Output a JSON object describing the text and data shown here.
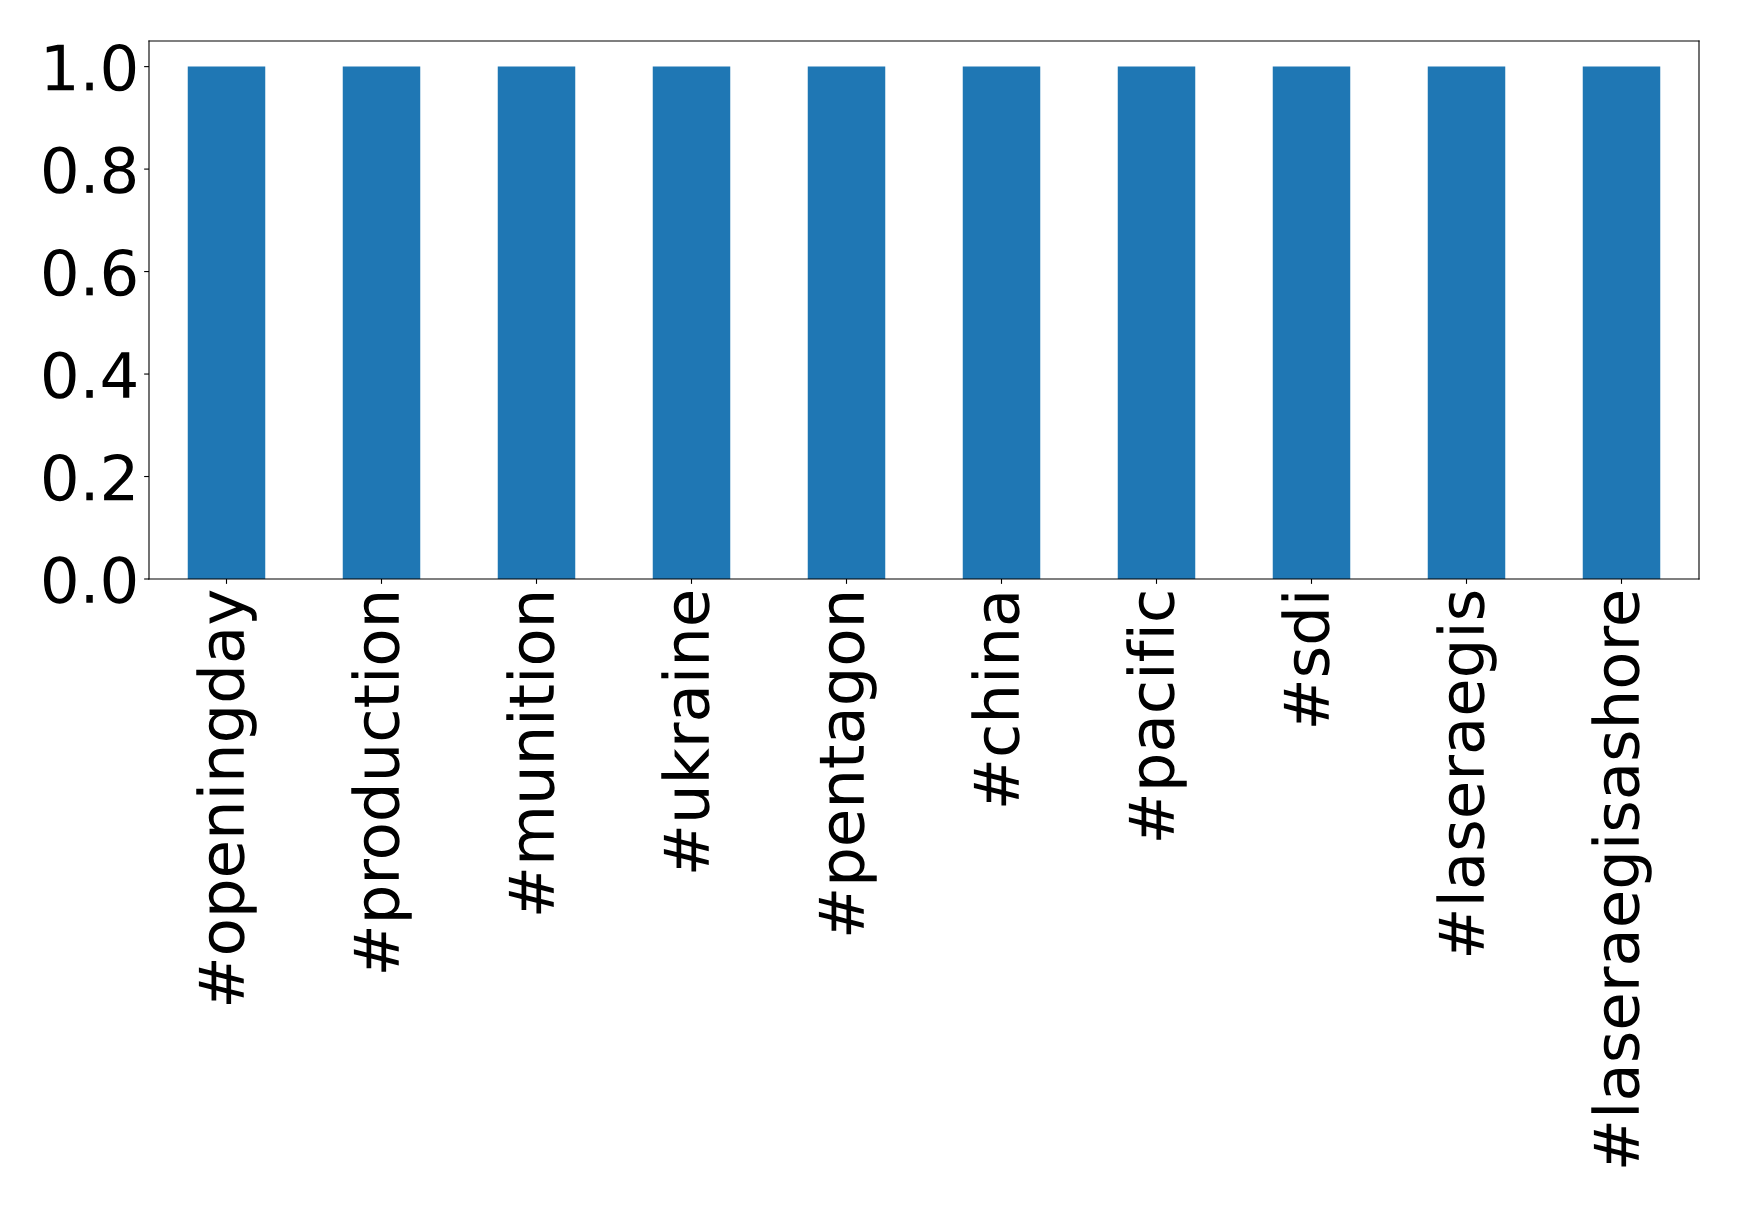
{
  "chart_data": {
    "type": "bar",
    "categories": [
      "#openingday",
      "#production",
      "#munition",
      "#ukraine",
      "#pentagon",
      "#china",
      "#pacific",
      "#sdi",
      "#laseraegis",
      "#laseraegisashore"
    ],
    "values": [
      1,
      1,
      1,
      1,
      1,
      1,
      1,
      1,
      1,
      1
    ],
    "color": "#1f77b4",
    "ylim": [
      0,
      1.05
    ],
    "yticks": [
      {
        "value": 0,
        "label": "0.0"
      },
      0.2,
      0.4,
      0.6,
      0.8,
      {
        "value": 1,
        "label": "1.0"
      }
    ],
    "grid": false,
    "legend": false
  }
}
